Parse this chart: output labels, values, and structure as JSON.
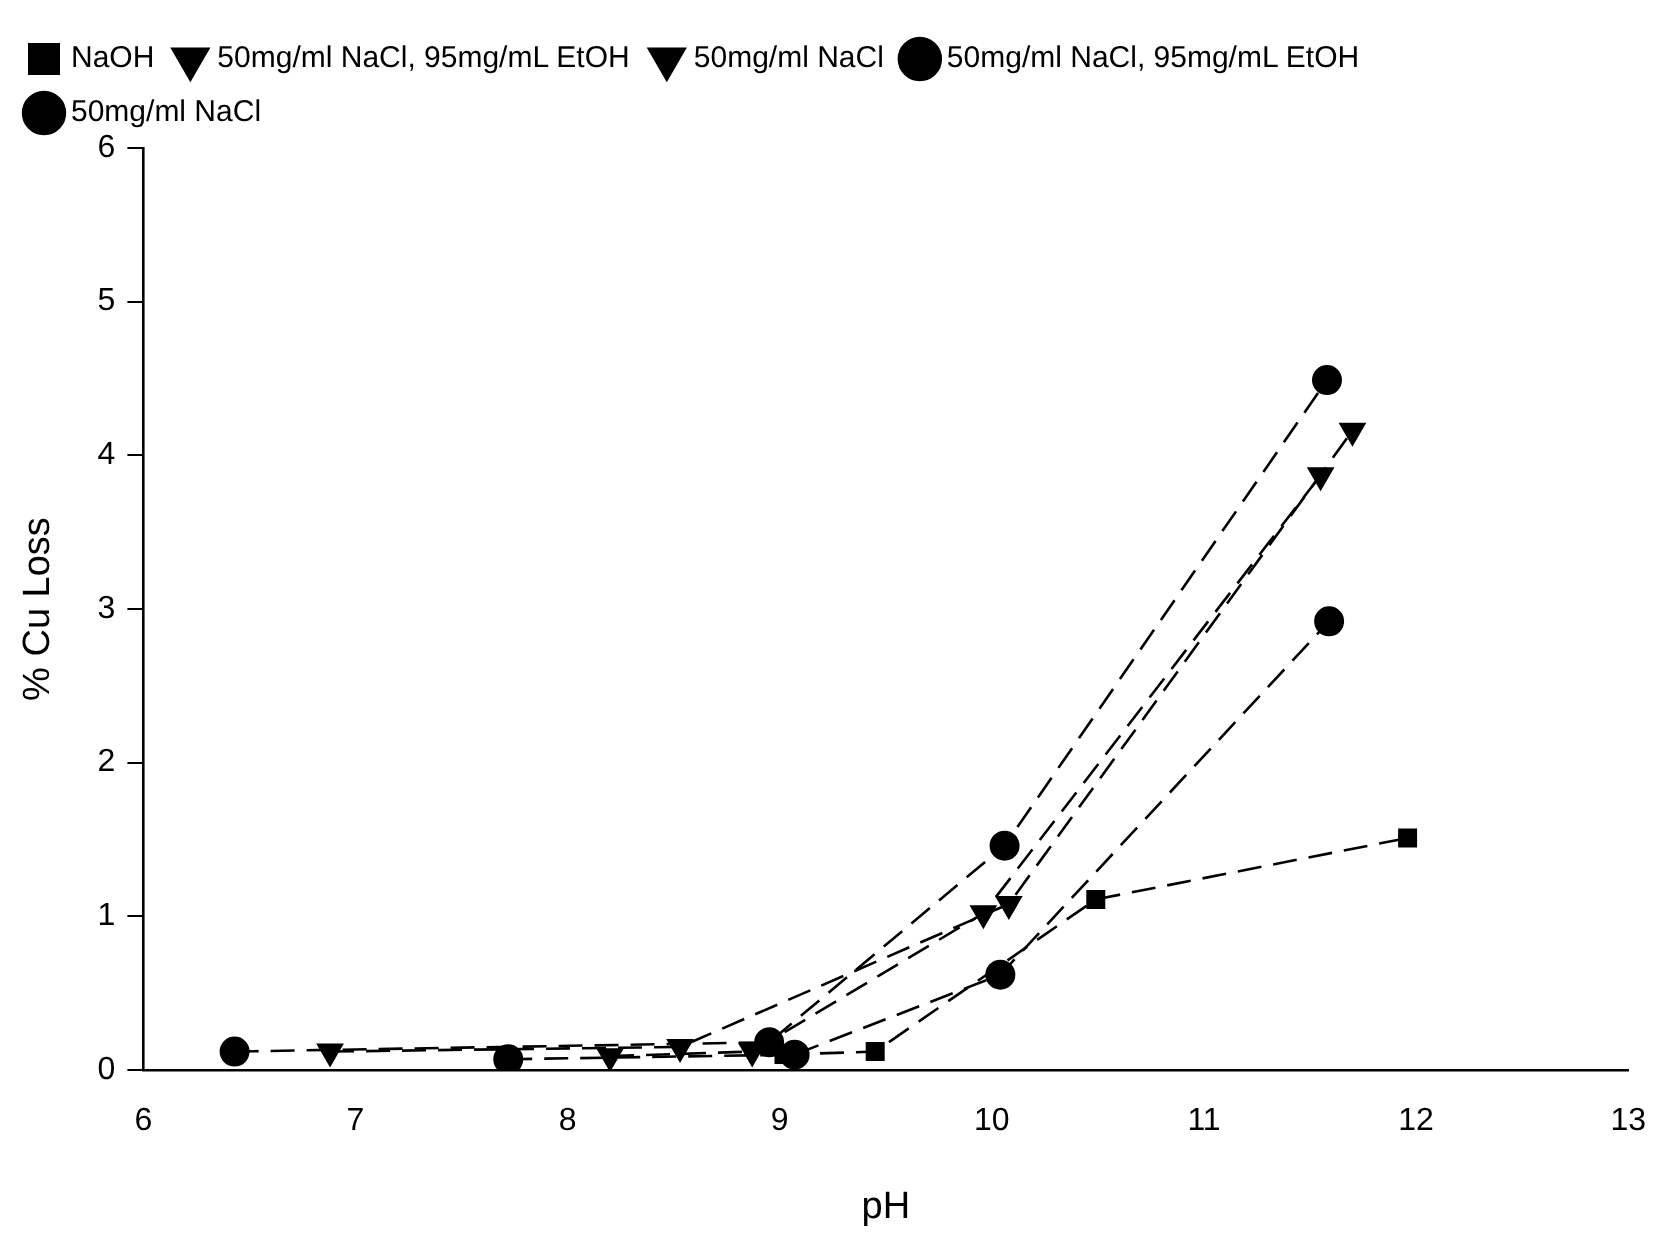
{
  "chart_data": {
    "type": "line",
    "xlabel": "pH",
    "ylabel": "% Cu Loss",
    "xlim": [
      6,
      13
    ],
    "xticks": [
      6,
      7,
      8,
      9,
      10,
      11,
      12,
      13
    ],
    "ylim": [
      0,
      6
    ],
    "yticks": [
      0,
      1,
      2,
      3,
      4,
      5,
      6
    ],
    "grid": false,
    "legend": "top left",
    "line_style": "dashed",
    "series": [
      {
        "name": "50mg/ml NaCl",
        "color": "#000000",
        "marker": "circle",
        "x": [
          7.72,
          9.07,
          10.04,
          11.59
        ],
        "values": [
          0.07,
          0.1,
          0.62,
          2.92
        ]
      },
      {
        "name": "50mg/ml NaCl, 95mg/mL EtOH",
        "color": "#000000",
        "marker": "circle",
        "x": [
          6.43,
          8.95,
          10.06,
          11.58
        ],
        "values": [
          0.12,
          0.18,
          1.46,
          4.49
        ]
      },
      {
        "name": "50mg/ml NaCl",
        "color": "#000000",
        "marker": "triangle",
        "x": [
          8.2,
          8.87,
          9.96,
          11.55
        ],
        "values": [
          0.09,
          0.12,
          1.02,
          3.87
        ]
      },
      {
        "name": "50mg/ml NaCl, 95mg/mL EtOH",
        "color": "#000000",
        "marker": "triangle",
        "x": [
          6.88,
          8.53,
          10.08,
          11.7
        ],
        "values": [
          0.12,
          0.15,
          1.08,
          4.16
        ]
      },
      {
        "name": "NaOH",
        "color": "#000000",
        "marker": "square",
        "x": [
          9.02,
          9.45,
          10.49,
          11.96
        ],
        "values": [
          0.1,
          0.12,
          1.11,
          1.51
        ]
      }
    ]
  }
}
